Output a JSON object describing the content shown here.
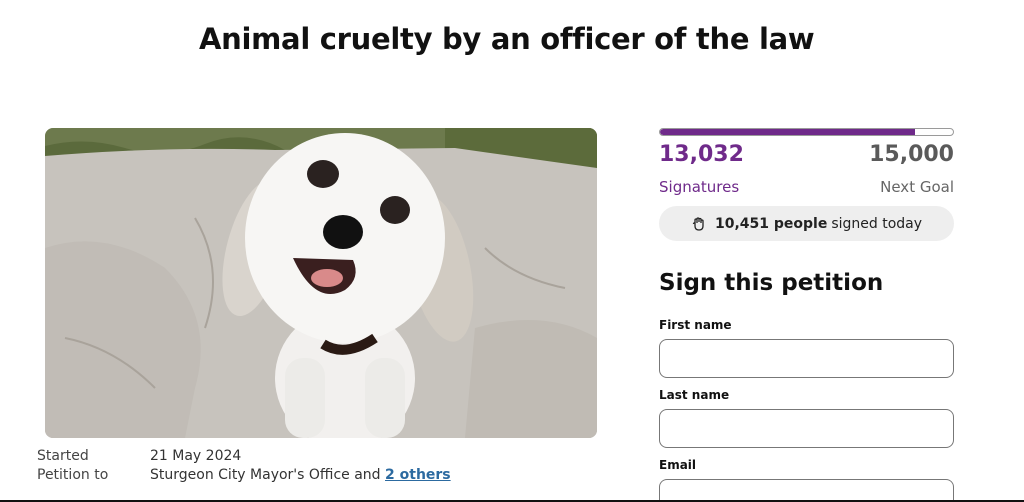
{
  "page": {
    "title": "Animal cruelty by an officer of the law"
  },
  "photo": {
    "alt": "dog-photo"
  },
  "meta": {
    "started_label": "Started",
    "started_value": "21 May 2024",
    "petition_to_label": "Petition to",
    "petition_to_value": "Sturgeon City Mayor's Office and",
    "petition_to_link": "2 others"
  },
  "progress": {
    "fraction": 0.869,
    "signatures_count": "13,032",
    "signatures_label": "Signatures",
    "goal_count": "15,000",
    "goal_label": "Next Goal",
    "today_bold": "10,451 people",
    "today_rest": "signed today",
    "accent": "#6f2a8a"
  },
  "form": {
    "heading": "Sign this petition",
    "first_name_label": "First name",
    "first_name_value": "",
    "last_name_label": "Last name",
    "last_name_value": "",
    "email_label": "Email",
    "email_value": ""
  }
}
